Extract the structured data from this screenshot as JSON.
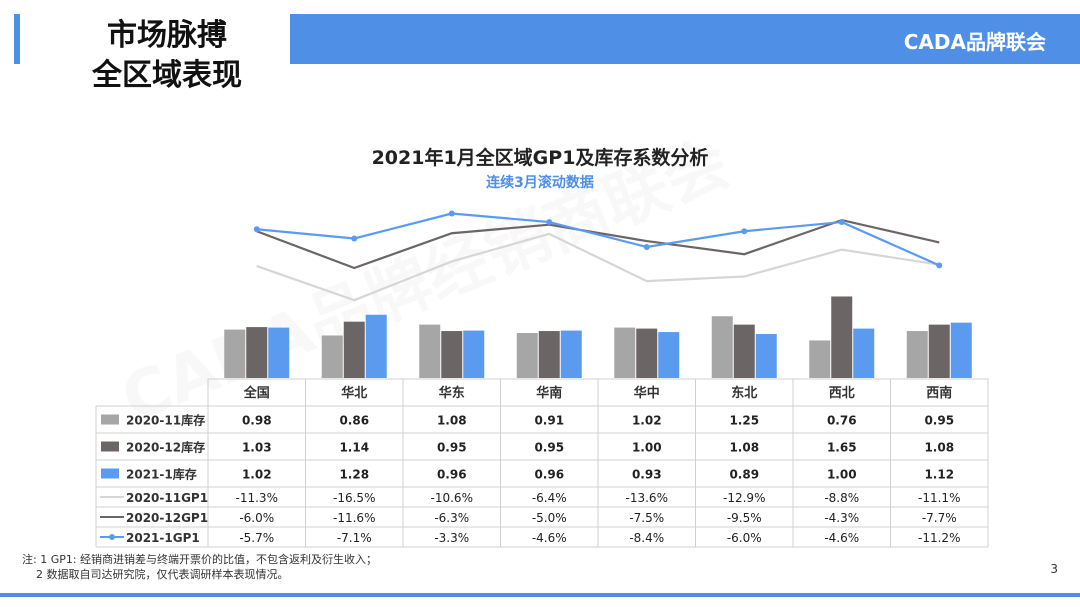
{
  "header": {
    "title_line1": "市场脉搏",
    "title_line2": "全区域表现",
    "brand": "CADA品牌联会"
  },
  "watermark": "CADA品牌经销商联会",
  "colors": {
    "accent": "#4f8fe6",
    "inv_2020_11": "#a6a6a6",
    "inv_2020_12": "#6b6566",
    "inv_2021_1": "#5b9bef",
    "gp_2020_11": "#d6d6d6",
    "gp_2020_12": "#6b6566",
    "gp_2021_1": "#5b9bef"
  },
  "chart_data": {
    "type": "bar",
    "title": "2021年1月全区域GP1及库存系数分析",
    "subtitle": "连续3月滚动数据",
    "categories": [
      "全国",
      "华北",
      "华东",
      "华南",
      "华中",
      "东北",
      "西北",
      "西南"
    ],
    "series": [
      {
        "name": "2020-11库存",
        "kind": "bar",
        "values": [
          0.98,
          0.86,
          1.08,
          0.91,
          1.02,
          1.25,
          0.76,
          0.95
        ],
        "labels": [
          "0.98",
          "0.86",
          "1.08",
          "0.91",
          "1.02",
          "1.25",
          "0.76",
          "0.95"
        ]
      },
      {
        "name": "2020-12库存",
        "kind": "bar",
        "values": [
          1.03,
          1.14,
          0.95,
          0.95,
          1.0,
          1.08,
          1.65,
          1.08
        ],
        "labels": [
          "1.03",
          "1.14",
          "0.95",
          "0.95",
          "1.00",
          "1.08",
          "1.65",
          "1.08"
        ]
      },
      {
        "name": "2021-1库存",
        "kind": "bar",
        "values": [
          1.02,
          1.28,
          0.96,
          0.96,
          0.93,
          0.89,
          1.0,
          1.12
        ],
        "labels": [
          "1.02",
          "1.28",
          "0.96",
          "0.96",
          "0.93",
          "0.89",
          "1.00",
          "1.12"
        ]
      },
      {
        "name": "2020-11GP1",
        "kind": "line",
        "values": [
          -11.3,
          -16.5,
          -10.6,
          -6.4,
          -13.6,
          -12.9,
          -8.8,
          -11.1
        ],
        "labels": [
          "-11.3%",
          "-16.5%",
          "-10.6%",
          "-6.4%",
          "-13.6%",
          "-12.9%",
          "-8.8%",
          "-11.1%"
        ]
      },
      {
        "name": "2020-12GP1",
        "kind": "line",
        "values": [
          -6.0,
          -11.6,
          -6.3,
          -5.0,
          -7.5,
          -9.5,
          -4.3,
          -7.7
        ],
        "labels": [
          "-6.0%",
          "-11.6%",
          "-6.3%",
          "-5.0%",
          "-7.5%",
          "-9.5%",
          "-4.3%",
          "-7.7%"
        ]
      },
      {
        "name": "2021-1GP1",
        "kind": "line",
        "values": [
          -5.7,
          -7.1,
          -3.3,
          -4.6,
          -8.4,
          -6.0,
          -4.6,
          -11.2
        ],
        "labels": [
          "-5.7%",
          "-7.1%",
          "-3.3%",
          "-4.6%",
          "-8.4%",
          "-6.0%",
          "-4.6%",
          "-11.2%"
        ]
      }
    ],
    "bar_range": [
      0,
      1.7
    ],
    "line_range": [
      -18,
      -2
    ]
  },
  "notes": {
    "line1": "注: 1 GP1: 经销商进销差与终端开票价的比值，不包含返利及衍生收入；",
    "line2": "2 数据取自司达研究院，仅代表调研样本表现情况。"
  },
  "page_number": "3"
}
